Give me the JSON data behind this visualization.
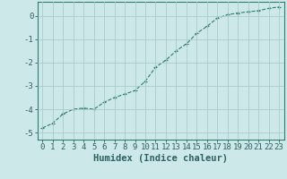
{
  "x": [
    0,
    1,
    2,
    3,
    4,
    5,
    6,
    7,
    8,
    9,
    10,
    11,
    12,
    13,
    14,
    15,
    16,
    17,
    18,
    19,
    20,
    21,
    22,
    23
  ],
  "y": [
    -4.8,
    -4.6,
    -4.2,
    -4.0,
    -3.95,
    -4.0,
    -3.7,
    -3.5,
    -3.35,
    -3.2,
    -2.8,
    -2.2,
    -1.9,
    -1.5,
    -1.2,
    -0.75,
    -0.45,
    -0.1,
    0.05,
    0.12,
    0.17,
    0.22,
    0.32,
    0.38
  ],
  "line_color": "#2e7d6e",
  "marker": "+",
  "marker_size": 3,
  "bg_color": "#cce8e8",
  "grid_color": "#aacccc",
  "xlabel": "Humidex (Indice chaleur)",
  "xlim": [
    -0.5,
    23.5
  ],
  "ylim": [
    -5.3,
    0.6
  ],
  "xticks": [
    0,
    1,
    2,
    3,
    4,
    5,
    6,
    7,
    8,
    9,
    10,
    11,
    12,
    13,
    14,
    15,
    16,
    17,
    18,
    19,
    20,
    21,
    22,
    23
  ],
  "yticks": [
    0,
    -1,
    -2,
    -3,
    -4,
    -5
  ],
  "font_color": "#2e6060",
  "xlabel_fontsize": 7.5,
  "tick_fontsize": 6.5,
  "linewidth": 0.8,
  "markeredgewidth": 0.8
}
